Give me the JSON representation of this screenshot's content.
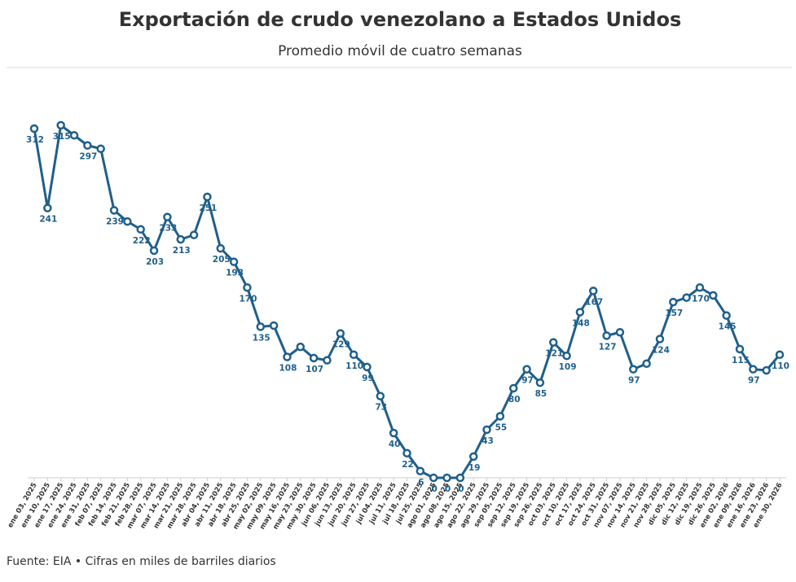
{
  "chart_data": {
    "type": "line",
    "title": "Exportación de crudo venezolano a Estados Unidos",
    "subtitle": "Promedio móvil de cuatro semanas",
    "source": "Fuente: EIA • Cifras en miles de barriles diarios",
    "color": "#1f5f8b",
    "categories": [
      "ene 03, 2025",
      "ene 10, 2025",
      "ene 17, 2025",
      "ene 24, 2025",
      "ene 31, 2025",
      "feb 07, 2025",
      "feb 14, 2025",
      "feb 21, 2025",
      "feb 28, 2025",
      "mar 07, 2025",
      "mar 14, 2025",
      "mar 21, 2025",
      "mar 28, 2025",
      "abr 04, 2025",
      "abr 11, 2025",
      "abr 18, 2025",
      "abr 25, 2025",
      "may 02, 2025",
      "may 09, 2025",
      "may 16, 2025",
      "may 23, 2025",
      "may 30, 2025",
      "jun 06, 2025",
      "jun 13, 2025",
      "jun 20, 2025",
      "jun 27, 2025",
      "jul 04, 2025",
      "jul 11, 2025",
      "jul 18, 2025",
      "jul 25, 2025",
      "ago 01, 2025",
      "ago 08, 2025",
      "ago 15, 2025",
      "ago 22, 2025",
      "ago 29, 2025",
      "sep 05, 2025",
      "sep 12, 2025",
      "sep 19, 2025",
      "sep 26, 2025",
      "oct 03, 2025",
      "oct 10, 2025",
      "oct 17, 2025",
      "oct 24, 2025",
      "oct 31, 2025",
      "nov 07, 2025",
      "nov 14, 2025",
      "nov 21, 2025",
      "nov 28, 2025",
      "dic 05, 2025",
      "dic 12, 2025",
      "dic 19, 2025",
      "dic 26, 2025",
      "ene 02, 2026",
      "ene 09, 2026",
      "ene 16, 2026",
      "ene 23, 2026",
      "ene 30, 2026"
    ],
    "values": [
      312,
      241,
      315,
      306,
      297,
      294,
      239,
      229,
      222,
      203,
      233,
      213,
      217,
      251,
      205,
      193,
      170,
      135,
      136,
      108,
      117,
      107,
      105,
      129,
      110,
      99,
      73,
      40,
      22,
      6,
      0,
      0,
      0,
      19,
      43,
      55,
      80,
      97,
      85,
      121,
      109,
      148,
      167,
      127,
      130,
      97,
      102,
      124,
      157,
      161,
      170,
      163,
      145,
      115,
      97,
      96,
      110
    ],
    "value_labels": [
      "312",
      "241",
      "315",
      null,
      "297",
      null,
      "239",
      null,
      "222",
      "203",
      "233",
      "213",
      null,
      "251",
      "205",
      "193",
      "170",
      "135",
      null,
      "108",
      null,
      "107",
      null,
      "129",
      "110",
      "99",
      "73",
      "40",
      "22",
      "6",
      "0",
      "0",
      "0",
      "19",
      "43",
      "55",
      "80",
      "97",
      "85",
      "121",
      "109",
      "148",
      "167",
      "127",
      null,
      "97",
      null,
      "124",
      "157",
      null,
      "170",
      null,
      "145",
      "115",
      "97",
      null,
      "110"
    ],
    "ylim": [
      0,
      360
    ]
  }
}
